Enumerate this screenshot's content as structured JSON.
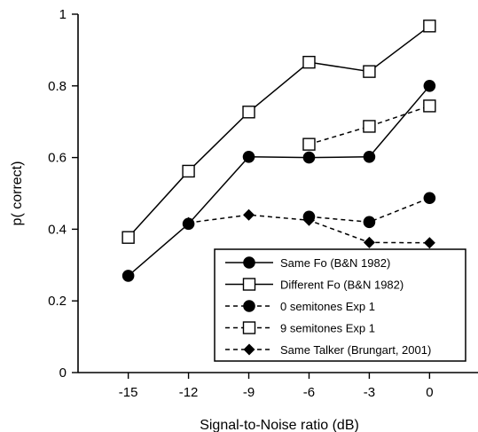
{
  "chart_data": {
    "type": "line",
    "title": "",
    "xlabel": "Signal-to-Noise ratio (dB)",
    "ylabel": "p( correct)",
    "xlim": [
      -17.5,
      2.5
    ],
    "ylim": [
      0,
      1
    ],
    "xticks": [
      -15,
      -12,
      -9,
      -6,
      -3,
      0
    ],
    "xtick_labels": [
      "-15",
      "-12",
      "-9",
      "-6",
      "-3",
      "0"
    ],
    "yticks": [
      0,
      0.2,
      0.4,
      0.6,
      0.8,
      1
    ],
    "ytick_labels": [
      "0",
      "0.2",
      "0.4",
      "0.6",
      "0.8",
      "1"
    ],
    "grid": false,
    "legend_position": "bottom-right",
    "series": [
      {
        "name": "Same Fo (B&N 1982)",
        "x": [
          -15,
          -12,
          -9,
          -6,
          -3,
          0
        ],
        "y": [
          0.27,
          0.415,
          0.602,
          0.6,
          0.602,
          0.8
        ],
        "marker": "filled-circle",
        "line": "solid",
        "color": "#000000"
      },
      {
        "name": "Different Fo (B&N 1982)",
        "x": [
          -15,
          -12,
          -9,
          -6,
          -3,
          0
        ],
        "y": [
          0.377,
          0.562,
          0.727,
          0.866,
          0.84,
          0.967
        ],
        "marker": "open-square",
        "line": "solid",
        "color": "#000000"
      },
      {
        "name": "0 semitones Exp 1",
        "x": [
          -6,
          -3,
          0
        ],
        "y": [
          0.435,
          0.42,
          0.487
        ],
        "marker": "filled-circle",
        "line": "dashed",
        "color": "#000000"
      },
      {
        "name": "9 semitones Exp 1",
        "x": [
          -6,
          -3,
          0
        ],
        "y": [
          0.637,
          0.687,
          0.744
        ],
        "marker": "open-square",
        "line": "dashed",
        "color": "#000000"
      },
      {
        "name": "Same Talker (Brungart, 2001)",
        "x": [
          -12,
          -9,
          -6,
          -3,
          0
        ],
        "y": [
          0.418,
          0.44,
          0.425,
          0.363,
          0.362
        ],
        "marker": "filled-diamond",
        "line": "dashed",
        "color": "#000000"
      }
    ]
  }
}
